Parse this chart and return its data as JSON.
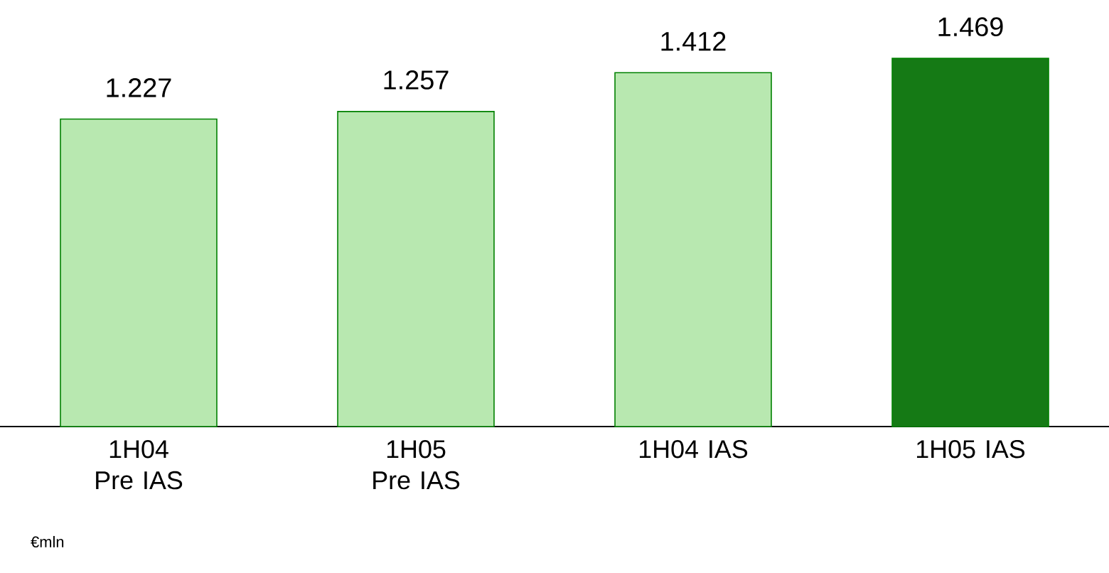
{
  "chart_data": {
    "type": "bar",
    "categories": [
      "1H04 Pre IAS",
      "1H05 Pre IAS",
      "1H04 IAS",
      "1H05 IAS"
    ],
    "values": [
      1.227,
      1.257,
      1.412,
      1.469
    ],
    "colors": [
      "#b8e8b0",
      "#b8e8b0",
      "#b8e8b0",
      "#157a15"
    ],
    "data_labels": true,
    "tick_labels": "x",
    "annotations": [
      "€mln"
    ]
  }
}
